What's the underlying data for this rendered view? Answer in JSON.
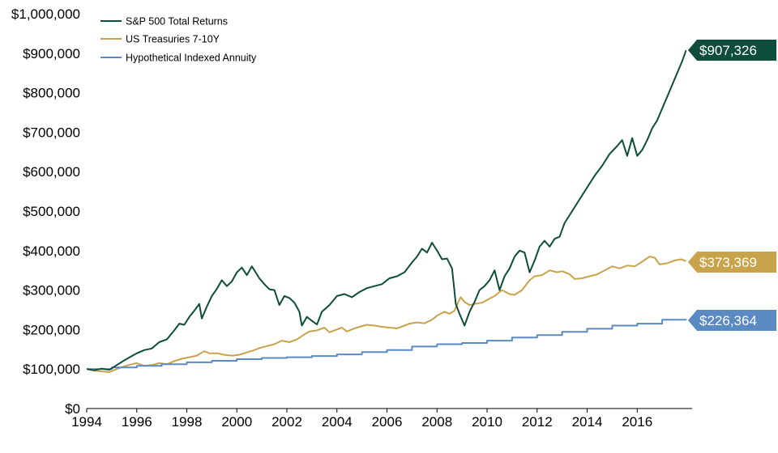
{
  "chart_data": {
    "type": "line",
    "title": "",
    "xlabel": "",
    "ylabel": "",
    "xlim": [
      1994,
      2018
    ],
    "ylim": [
      0,
      1000000
    ],
    "x_ticks": [
      "1994",
      "1996",
      "1998",
      "2000",
      "2002",
      "2004",
      "2006",
      "2008",
      "2010",
      "2012",
      "2014",
      "2016"
    ],
    "y_ticks": [
      "$0",
      "$100,000",
      "$200,000",
      "$300,000",
      "$400,000",
      "$500,000",
      "$600,000",
      "$700,000",
      "$800,000",
      "$900,000",
      "$1,000,000"
    ],
    "grid": false,
    "legend_position": "top-left",
    "series": [
      {
        "name": "S&P 500 Total Returns",
        "color": "#0e4d3c",
        "end_label": "$907,326",
        "points": [
          [
            1994.0,
            100000
          ],
          [
            1994.3,
            97000
          ],
          [
            1994.6,
            101000
          ],
          [
            1994.9,
            98000
          ],
          [
            1995.2,
            110000
          ],
          [
            1995.5,
            122000
          ],
          [
            1995.8,
            133000
          ],
          [
            1996.0,
            140000
          ],
          [
            1996.3,
            148000
          ],
          [
            1996.6,
            152000
          ],
          [
            1996.9,
            168000
          ],
          [
            1997.2,
            175000
          ],
          [
            1997.5,
            198000
          ],
          [
            1997.7,
            215000
          ],
          [
            1997.9,
            212000
          ],
          [
            1998.1,
            232000
          ],
          [
            1998.3,
            248000
          ],
          [
            1998.5,
            265000
          ],
          [
            1998.6,
            228000
          ],
          [
            1998.8,
            258000
          ],
          [
            1999.0,
            285000
          ],
          [
            1999.2,
            303000
          ],
          [
            1999.4,
            325000
          ],
          [
            1999.6,
            310000
          ],
          [
            1999.8,
            322000
          ],
          [
            2000.0,
            345000
          ],
          [
            2000.2,
            357000
          ],
          [
            2000.4,
            338000
          ],
          [
            2000.6,
            360000
          ],
          [
            2000.7,
            350000
          ],
          [
            2000.9,
            330000
          ],
          [
            2001.1,
            315000
          ],
          [
            2001.3,
            302000
          ],
          [
            2001.5,
            300000
          ],
          [
            2001.7,
            262000
          ],
          [
            2001.9,
            285000
          ],
          [
            2002.1,
            280000
          ],
          [
            2002.3,
            268000
          ],
          [
            2002.5,
            245000
          ],
          [
            2002.6,
            210000
          ],
          [
            2002.8,
            232000
          ],
          [
            2003.0,
            222000
          ],
          [
            2003.2,
            213000
          ],
          [
            2003.4,
            245000
          ],
          [
            2003.7,
            262000
          ],
          [
            2004.0,
            285000
          ],
          [
            2004.3,
            290000
          ],
          [
            2004.6,
            282000
          ],
          [
            2004.9,
            295000
          ],
          [
            2005.2,
            305000
          ],
          [
            2005.5,
            310000
          ],
          [
            2005.8,
            315000
          ],
          [
            2006.1,
            330000
          ],
          [
            2006.4,
            335000
          ],
          [
            2006.7,
            345000
          ],
          [
            2007.0,
            370000
          ],
          [
            2007.2,
            385000
          ],
          [
            2007.4,
            405000
          ],
          [
            2007.6,
            395000
          ],
          [
            2007.8,
            420000
          ],
          [
            2008.0,
            400000
          ],
          [
            2008.2,
            378000
          ],
          [
            2008.4,
            380000
          ],
          [
            2008.6,
            355000
          ],
          [
            2008.75,
            265000
          ],
          [
            2008.9,
            240000
          ],
          [
            2009.1,
            210000
          ],
          [
            2009.3,
            245000
          ],
          [
            2009.5,
            270000
          ],
          [
            2009.7,
            300000
          ],
          [
            2009.9,
            310000
          ],
          [
            2010.1,
            325000
          ],
          [
            2010.3,
            350000
          ],
          [
            2010.5,
            300000
          ],
          [
            2010.7,
            335000
          ],
          [
            2010.9,
            355000
          ],
          [
            2011.1,
            385000
          ],
          [
            2011.3,
            400000
          ],
          [
            2011.5,
            395000
          ],
          [
            2011.7,
            345000
          ],
          [
            2011.9,
            375000
          ],
          [
            2012.1,
            410000
          ],
          [
            2012.3,
            425000
          ],
          [
            2012.5,
            410000
          ],
          [
            2012.7,
            430000
          ],
          [
            2012.9,
            435000
          ],
          [
            2013.1,
            470000
          ],
          [
            2013.4,
            500000
          ],
          [
            2013.7,
            530000
          ],
          [
            2014.0,
            560000
          ],
          [
            2014.3,
            590000
          ],
          [
            2014.6,
            615000
          ],
          [
            2014.9,
            645000
          ],
          [
            2015.2,
            665000
          ],
          [
            2015.4,
            680000
          ],
          [
            2015.6,
            640000
          ],
          [
            2015.8,
            685000
          ],
          [
            2016.0,
            640000
          ],
          [
            2016.2,
            655000
          ],
          [
            2016.4,
            680000
          ],
          [
            2016.6,
            710000
          ],
          [
            2016.8,
            730000
          ],
          [
            2017.0,
            760000
          ],
          [
            2017.2,
            790000
          ],
          [
            2017.4,
            820000
          ],
          [
            2017.6,
            850000
          ],
          [
            2017.8,
            880000
          ],
          [
            2017.95,
            907326
          ]
        ]
      },
      {
        "name": "US Treasuries 7-10Y",
        "color": "#c9a34b",
        "end_label": "$373,369",
        "points": [
          [
            1994.0,
            100000
          ],
          [
            1994.3,
            96000
          ],
          [
            1994.6,
            94000
          ],
          [
            1994.9,
            92000
          ],
          [
            1995.2,
            100000
          ],
          [
            1995.5,
            107000
          ],
          [
            1995.8,
            112000
          ],
          [
            1996.0,
            115000
          ],
          [
            1996.3,
            108000
          ],
          [
            1996.6,
            110000
          ],
          [
            1996.9,
            115000
          ],
          [
            1997.2,
            112000
          ],
          [
            1997.5,
            120000
          ],
          [
            1997.8,
            126000
          ],
          [
            1998.1,
            130000
          ],
          [
            1998.4,
            134000
          ],
          [
            1998.7,
            145000
          ],
          [
            1998.9,
            140000
          ],
          [
            1999.2,
            140000
          ],
          [
            1999.5,
            136000
          ],
          [
            1999.8,
            134000
          ],
          [
            2000.1,
            136000
          ],
          [
            2000.4,
            142000
          ],
          [
            2000.7,
            148000
          ],
          [
            2000.9,
            153000
          ],
          [
            2001.2,
            158000
          ],
          [
            2001.5,
            163000
          ],
          [
            2001.8,
            172000
          ],
          [
            2002.1,
            168000
          ],
          [
            2002.4,
            175000
          ],
          [
            2002.7,
            188000
          ],
          [
            2002.9,
            195000
          ],
          [
            2003.2,
            198000
          ],
          [
            2003.5,
            205000
          ],
          [
            2003.7,
            193000
          ],
          [
            2003.9,
            198000
          ],
          [
            2004.2,
            205000
          ],
          [
            2004.4,
            195000
          ],
          [
            2004.7,
            203000
          ],
          [
            2004.9,
            207000
          ],
          [
            2005.2,
            212000
          ],
          [
            2005.5,
            210000
          ],
          [
            2005.8,
            207000
          ],
          [
            2006.1,
            205000
          ],
          [
            2006.4,
            203000
          ],
          [
            2006.7,
            210000
          ],
          [
            2006.9,
            215000
          ],
          [
            2007.2,
            218000
          ],
          [
            2007.5,
            216000
          ],
          [
            2007.8,
            225000
          ],
          [
            2008.0,
            235000
          ],
          [
            2008.3,
            245000
          ],
          [
            2008.5,
            240000
          ],
          [
            2008.7,
            248000
          ],
          [
            2008.85,
            270000
          ],
          [
            2008.95,
            282000
          ],
          [
            2009.1,
            270000
          ],
          [
            2009.3,
            262000
          ],
          [
            2009.5,
            265000
          ],
          [
            2009.8,
            268000
          ],
          [
            2010.0,
            275000
          ],
          [
            2010.3,
            285000
          ],
          [
            2010.6,
            300000
          ],
          [
            2010.9,
            290000
          ],
          [
            2011.1,
            288000
          ],
          [
            2011.4,
            300000
          ],
          [
            2011.7,
            325000
          ],
          [
            2011.9,
            335000
          ],
          [
            2012.2,
            338000
          ],
          [
            2012.5,
            350000
          ],
          [
            2012.8,
            345000
          ],
          [
            2013.0,
            348000
          ],
          [
            2013.3,
            340000
          ],
          [
            2013.5,
            328000
          ],
          [
            2013.8,
            330000
          ],
          [
            2014.1,
            335000
          ],
          [
            2014.4,
            340000
          ],
          [
            2014.7,
            350000
          ],
          [
            2015.0,
            360000
          ],
          [
            2015.3,
            355000
          ],
          [
            2015.6,
            362000
          ],
          [
            2015.9,
            360000
          ],
          [
            2016.2,
            372000
          ],
          [
            2016.5,
            385000
          ],
          [
            2016.7,
            382000
          ],
          [
            2016.9,
            365000
          ],
          [
            2017.2,
            368000
          ],
          [
            2017.5,
            375000
          ],
          [
            2017.75,
            378000
          ],
          [
            2017.95,
            373369
          ]
        ]
      },
      {
        "name": "Hypothetical Indexed Annuity",
        "color": "#5b8ac2",
        "end_label": "$226,364",
        "step": true,
        "points": [
          [
            1994.0,
            100000
          ],
          [
            1995.0,
            104000
          ],
          [
            1996.0,
            108000
          ],
          [
            1997.0,
            112000
          ],
          [
            1998.0,
            117000
          ],
          [
            1999.0,
            121000
          ],
          [
            2000.0,
            125000
          ],
          [
            2001.0,
            128000
          ],
          [
            2002.0,
            130000
          ],
          [
            2003.0,
            133000
          ],
          [
            2004.0,
            137000
          ],
          [
            2005.0,
            143000
          ],
          [
            2006.0,
            148000
          ],
          [
            2007.0,
            157000
          ],
          [
            2008.0,
            163000
          ],
          [
            2009.0,
            166000
          ],
          [
            2010.0,
            172000
          ],
          [
            2011.0,
            180000
          ],
          [
            2012.0,
            186000
          ],
          [
            2013.0,
            194000
          ],
          [
            2014.0,
            202000
          ],
          [
            2015.0,
            210000
          ],
          [
            2016.0,
            215000
          ],
          [
            2017.0,
            225000
          ],
          [
            2017.95,
            226364
          ]
        ]
      }
    ]
  }
}
